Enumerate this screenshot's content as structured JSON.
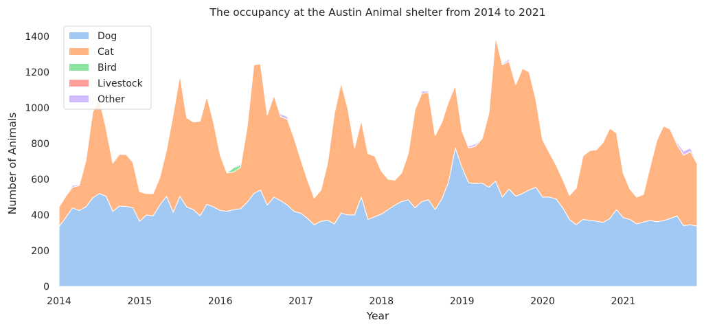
{
  "chart_data": {
    "type": "area",
    "stacked": true,
    "title": "The occupancy at the Austin Animal shelter from 2014 to 2021",
    "xlabel": "Year",
    "ylabel": "Number of Animals",
    "xlim": [
      2014.0,
      2021.917
    ],
    "ylim": [
      0,
      1480
    ],
    "x_ticks": [
      2014,
      2015,
      2016,
      2017,
      2018,
      2019,
      2020,
      2021
    ],
    "x_tick_labels": [
      "2014",
      "2015",
      "2016",
      "2017",
      "2018",
      "2019",
      "2020",
      "2021"
    ],
    "y_ticks": [
      0,
      200,
      400,
      600,
      800,
      1000,
      1200,
      1400
    ],
    "y_tick_labels": [
      "0",
      "200",
      "400",
      "600",
      "800",
      "1000",
      "1200",
      "1400"
    ],
    "grid": false,
    "legend_position": "top-left",
    "x_start": 2014.0,
    "x_step": 0.08333,
    "series": [
      {
        "name": "Dog",
        "color": "#a1c9f4",
        "values": [
          335,
          385,
          440,
          425,
          445,
          495,
          520,
          505,
          420,
          450,
          448,
          440,
          365,
          400,
          395,
          455,
          505,
          415,
          505,
          445,
          430,
          395,
          460,
          445,
          425,
          420,
          430,
          435,
          470,
          520,
          540,
          455,
          500,
          480,
          455,
          420,
          410,
          380,
          345,
          365,
          370,
          350,
          410,
          400,
          400,
          500,
          375,
          390,
          405,
          430,
          455,
          475,
          485,
          440,
          475,
          485,
          430,
          490,
          585,
          775,
          665,
          580,
          575,
          578,
          555,
          590,
          500,
          545,
          505,
          520,
          540,
          555,
          500,
          500,
          490,
          440,
          375,
          345,
          375,
          370,
          365,
          358,
          380,
          430,
          385,
          375,
          350,
          360,
          370,
          362,
          368,
          380,
          395,
          340,
          345,
          338
        ]
      },
      {
        "name": "Cat",
        "color": "#ffb482",
        "values": [
          110,
          120,
          115,
          140,
          260,
          480,
          530,
          380,
          270,
          290,
          290,
          255,
          165,
          120,
          125,
          155,
          260,
          550,
          680,
          500,
          490,
          530,
          605,
          475,
          310,
          215,
          210,
          230,
          420,
          720,
          705,
          505,
          570,
          470,
          480,
          410,
          300,
          215,
          150,
          175,
          325,
          620,
          730,
          595,
          375,
          430,
          368,
          340,
          240,
          170,
          140,
          160,
          260,
          550,
          605,
          600,
          415,
          430,
          450,
          350,
          205,
          195,
          210,
          250,
          415,
          805,
          740,
          715,
          625,
          700,
          660,
          490,
          320,
          250,
          190,
          160,
          135,
          205,
          355,
          390,
          400,
          448,
          505,
          430,
          250,
          170,
          150,
          155,
          300,
          455,
          530,
          500,
          400,
          395,
          410,
          350
        ]
      },
      {
        "name": "Bird",
        "color": "#8de5a1",
        "values": [
          0,
          0,
          0,
          0,
          0,
          0,
          0,
          0,
          0,
          0,
          0,
          0,
          0,
          0,
          0,
          0,
          0,
          0,
          0,
          0,
          0,
          0,
          0,
          0,
          0,
          0,
          25,
          15,
          0,
          0,
          0,
          0,
          0,
          0,
          0,
          0,
          0,
          0,
          0,
          0,
          0,
          0,
          0,
          0,
          0,
          0,
          0,
          0,
          0,
          0,
          0,
          0,
          0,
          0,
          0,
          0,
          0,
          0,
          0,
          0,
          0,
          0,
          0,
          0,
          0,
          0,
          0,
          0,
          0,
          0,
          0,
          0,
          0,
          0,
          0,
          0,
          0,
          0,
          0,
          0,
          0,
          0,
          0,
          0,
          0,
          0,
          0,
          0,
          0,
          0,
          0,
          0,
          0,
          0,
          0,
          0
        ]
      },
      {
        "name": "Livestock",
        "color": "#ff9f9b",
        "values": [
          0,
          0,
          0,
          0,
          0,
          0,
          0,
          0,
          0,
          0,
          0,
          0,
          0,
          0,
          0,
          0,
          0,
          0,
          0,
          0,
          0,
          0,
          0,
          0,
          0,
          0,
          0,
          0,
          0,
          0,
          0,
          0,
          0,
          0,
          0,
          0,
          0,
          0,
          0,
          0,
          0,
          0,
          0,
          0,
          0,
          0,
          0,
          0,
          0,
          0,
          0,
          0,
          0,
          0,
          0,
          0,
          0,
          0,
          0,
          0,
          0,
          0,
          0,
          0,
          0,
          0,
          0,
          0,
          0,
          0,
          0,
          0,
          0,
          0,
          0,
          0,
          0,
          0,
          0,
          0,
          0,
          0,
          0,
          0,
          0,
          0,
          0,
          0,
          0,
          0,
          0,
          0,
          0,
          0,
          0,
          0
        ]
      },
      {
        "name": "Other",
        "color": "#d0bbff",
        "values": [
          2,
          2,
          10,
          5,
          2,
          2,
          2,
          2,
          2,
          2,
          2,
          2,
          2,
          2,
          2,
          2,
          2,
          2,
          2,
          2,
          2,
          2,
          2,
          2,
          2,
          2,
          5,
          5,
          2,
          2,
          2,
          2,
          8,
          15,
          15,
          2,
          2,
          2,
          2,
          2,
          2,
          2,
          8,
          2,
          2,
          2,
          2,
          2,
          2,
          2,
          2,
          2,
          2,
          2,
          12,
          8,
          2,
          2,
          2,
          2,
          2,
          10,
          12,
          2,
          2,
          2,
          5,
          12,
          2,
          2,
          2,
          2,
          2,
          2,
          2,
          2,
          2,
          2,
          2,
          2,
          2,
          2,
          2,
          2,
          2,
          2,
          2,
          2,
          2,
          2,
          2,
          5,
          12,
          22,
          20,
          2
        ]
      }
    ]
  }
}
